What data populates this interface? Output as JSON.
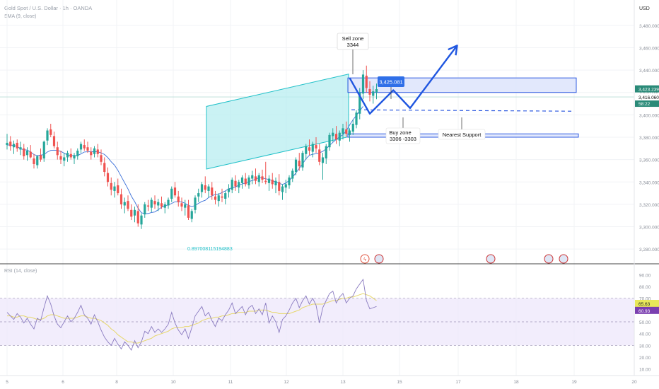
{
  "header": {
    "symbol": "Gold Spot / U.S. Dollar · 1h · OANDA",
    "indicator": "SMA (9, close)",
    "currency": "USD"
  },
  "rsi_header": "RSI (14, close)",
  "colors": {
    "up": "#26a69a",
    "down": "#ef5350",
    "channel": "#22c1c9",
    "zone_fill": "#dde4fb",
    "zone_stroke": "#2f5be0",
    "arrow": "#1f56e0",
    "sma": "#3a6fd8",
    "rsi": "#8a7bc0",
    "rsi_ma": "#e6d76a",
    "price_badge": "#2a8a78",
    "rsi_badge1": "#e8e85a",
    "rsi_badge2": "#7b3fb0"
  },
  "price_axis": {
    "ticks": [
      "3,480.000",
      "3,460.000",
      "3,440.000",
      "3,420.000",
      "3,400.000",
      "3,380.000",
      "3,360.000",
      "3,340.000",
      "3,320.000",
      "3,300.000",
      "3,280.000"
    ],
    "badges": [
      "3,423.239",
      "3,416.060",
      "58:22"
    ]
  },
  "rsi_axis": {
    "ticks": [
      "90.00",
      "80.00",
      "70.00",
      "60.00",
      "50.00",
      "40.00",
      "30.00",
      "20.00",
      "10.00"
    ],
    "badges": [
      "65.63",
      "60.93"
    ]
  },
  "time_axis": [
    "5",
    "6",
    "8",
    "10",
    "11",
    "12",
    "13",
    "15",
    "17",
    "18",
    "19",
    "20"
  ],
  "annotations": {
    "sell_zone": {
      "title": "Sell zone",
      "value": "3344"
    },
    "target_price": "3,425.081",
    "buy_zone": {
      "title": "Buy zone",
      "value": "3306 -3303"
    },
    "nearest_support": "Nearest Support",
    "channel_label": "0.897008115194883"
  },
  "chart_data": {
    "type": "candlestick",
    "price_range": [
      3270,
      3490
    ],
    "rsi_range": [
      5,
      95
    ],
    "candles": [
      [
        3373,
        3383,
        3369,
        3375
      ],
      [
        3376,
        3381,
        3368,
        3372
      ],
      [
        3371,
        3377,
        3365,
        3374
      ],
      [
        3375,
        3378,
        3367,
        3370
      ],
      [
        3369,
        3376,
        3364,
        3371
      ],
      [
        3370,
        3374,
        3360,
        3363
      ],
      [
        3364,
        3371,
        3359,
        3368
      ],
      [
        3367,
        3373,
        3361,
        3362
      ],
      [
        3361,
        3365,
        3352,
        3356
      ],
      [
        3355,
        3364,
        3352,
        3363
      ],
      [
        3364,
        3370,
        3358,
        3360
      ],
      [
        3361,
        3377,
        3358,
        3376
      ],
      [
        3377,
        3388,
        3373,
        3386
      ],
      [
        3387,
        3392,
        3380,
        3382
      ],
      [
        3381,
        3385,
        3370,
        3372
      ],
      [
        3371,
        3376,
        3360,
        3364
      ],
      [
        3363,
        3368,
        3356,
        3360
      ],
      [
        3359,
        3366,
        3354,
        3362
      ],
      [
        3362,
        3368,
        3358,
        3366
      ],
      [
        3365,
        3370,
        3360,
        3362
      ],
      [
        3361,
        3366,
        3356,
        3364
      ],
      [
        3363,
        3370,
        3360,
        3368
      ],
      [
        3369,
        3376,
        3366,
        3374
      ],
      [
        3373,
        3378,
        3368,
        3370
      ],
      [
        3371,
        3376,
        3366,
        3368
      ],
      [
        3367,
        3371,
        3360,
        3364
      ],
      [
        3365,
        3372,
        3362,
        3370
      ],
      [
        3369,
        3374,
        3362,
        3365
      ],
      [
        3364,
        3369,
        3355,
        3358
      ],
      [
        3357,
        3362,
        3345,
        3349
      ],
      [
        3348,
        3353,
        3336,
        3340
      ],
      [
        3339,
        3344,
        3328,
        3333
      ],
      [
        3332,
        3340,
        3326,
        3336
      ],
      [
        3337,
        3343,
        3328,
        3330
      ],
      [
        3329,
        3334,
        3316,
        3320
      ],
      [
        3319,
        3326,
        3312,
        3322
      ],
      [
        3323,
        3328,
        3314,
        3316
      ],
      [
        3315,
        3320,
        3306,
        3309
      ],
      [
        3310,
        3318,
        3304,
        3315
      ],
      [
        3314,
        3320,
        3300,
        3303
      ],
      [
        3302,
        3312,
        3298,
        3310
      ],
      [
        3311,
        3322,
        3308,
        3320
      ],
      [
        3319,
        3324,
        3314,
        3318
      ],
      [
        3317,
        3326,
        3313,
        3324
      ],
      [
        3323,
        3328,
        3316,
        3320
      ],
      [
        3319,
        3325,
        3314,
        3322
      ],
      [
        3321,
        3327,
        3316,
        3318
      ],
      [
        3317,
        3322,
        3312,
        3320
      ],
      [
        3319,
        3326,
        3316,
        3324
      ],
      [
        3325,
        3336,
        3322,
        3334
      ],
      [
        3335,
        3340,
        3326,
        3328
      ],
      [
        3327,
        3332,
        3318,
        3322
      ],
      [
        3321,
        3326,
        3314,
        3318
      ],
      [
        3317,
        3324,
        3310,
        3320
      ],
      [
        3319,
        3324,
        3306,
        3308
      ],
      [
        3307,
        3316,
        3304,
        3314
      ],
      [
        3315,
        3328,
        3312,
        3326
      ],
      [
        3327,
        3334,
        3322,
        3330
      ],
      [
        3331,
        3340,
        3326,
        3338
      ],
      [
        3337,
        3345,
        3330,
        3333
      ],
      [
        3332,
        3338,
        3326,
        3336
      ],
      [
        3335,
        3340,
        3324,
        3328
      ],
      [
        3327,
        3332,
        3320,
        3324
      ],
      [
        3323,
        3330,
        3318,
        3328
      ],
      [
        3327,
        3334,
        3322,
        3326
      ],
      [
        3325,
        3332,
        3320,
        3330
      ],
      [
        3331,
        3338,
        3326,
        3334
      ],
      [
        3333,
        3344,
        3330,
        3342
      ],
      [
        3341,
        3346,
        3332,
        3336
      ],
      [
        3335,
        3342,
        3330,
        3340
      ],
      [
        3339,
        3346,
        3334,
        3344
      ],
      [
        3343,
        3348,
        3336,
        3338
      ],
      [
        3337,
        3346,
        3334,
        3344
      ],
      [
        3343,
        3350,
        3338,
        3346
      ],
      [
        3345,
        3352,
        3338,
        3341
      ],
      [
        3340,
        3348,
        3336,
        3346
      ],
      [
        3345,
        3351,
        3339,
        3342
      ],
      [
        3341,
        3358,
        3338,
        3340
      ],
      [
        3339,
        3346,
        3332,
        3343
      ],
      [
        3342,
        3348,
        3334,
        3338
      ],
      [
        3337,
        3344,
        3330,
        3341
      ],
      [
        3340,
        3347,
        3328,
        3332
      ],
      [
        3331,
        3338,
        3324,
        3336
      ],
      [
        3335,
        3342,
        3330,
        3338
      ],
      [
        3337,
        3346,
        3334,
        3344
      ],
      [
        3343,
        3352,
        3340,
        3350
      ],
      [
        3349,
        3362,
        3346,
        3360
      ],
      [
        3359,
        3366,
        3350,
        3354
      ],
      [
        3353,
        3368,
        3350,
        3366
      ],
      [
        3365,
        3374,
        3360,
        3372
      ],
      [
        3371,
        3378,
        3364,
        3368
      ],
      [
        3367,
        3376,
        3362,
        3374
      ],
      [
        3373,
        3380,
        3366,
        3370
      ],
      [
        3369,
        3374,
        3355,
        3358
      ],
      [
        3357,
        3366,
        3342,
        3362
      ],
      [
        3361,
        3374,
        3356,
        3372
      ],
      [
        3371,
        3384,
        3368,
        3382
      ],
      [
        3381,
        3388,
        3376,
        3384
      ],
      [
        3383,
        3390,
        3374,
        3378
      ],
      [
        3377,
        3386,
        3372,
        3384
      ],
      [
        3383,
        3392,
        3378,
        3388
      ],
      [
        3387,
        3394,
        3380,
        3383
      ],
      [
        3382,
        3388,
        3376,
        3386
      ],
      [
        3385,
        3396,
        3382,
        3392
      ],
      [
        3391,
        3404,
        3388,
        3402
      ],
      [
        3401,
        3424,
        3396,
        3420
      ],
      [
        3419,
        3440,
        3414,
        3436
      ],
      [
        3435,
        3444,
        3420,
        3424
      ],
      [
        3423,
        3430,
        3412,
        3418
      ],
      [
        3417,
        3426,
        3410,
        3421
      ],
      [
        3420,
        3428,
        3414,
        3423
      ]
    ],
    "sma": [
      3373.0,
      3373.0,
      3372.6,
      3371.8,
      3369.6,
      3368.8,
      3368.5,
      3366.8,
      3364.5,
      3363.5,
      3364.1,
      3364.4,
      3366.8,
      3368.2,
      3368.4,
      3368.2,
      3367.3,
      3365.8,
      3364.0,
      3363.8,
      3363.3,
      3363.7,
      3365.1,
      3366.8,
      3367.0,
      3367.0,
      3367.1,
      3367.0,
      3366.0,
      3364.6,
      3361.8,
      3358.1,
      3355.0,
      3350.4,
      3344.8,
      3339.3,
      3333.8,
      3327.3,
      3322.4,
      3316.6,
      3312.5,
      3311.6,
      3311.8,
      3312.7,
      3313.2,
      3315.2,
      3317.4,
      3318.8,
      3319.4,
      3320.8,
      3322.3,
      3322.2,
      3322.2,
      3320.9,
      3319.1,
      3318.0,
      3319.0,
      3320.9,
      3322.6,
      3323.6,
      3326.1,
      3327.6,
      3328.8,
      3329.0,
      3330.6,
      3332.0,
      3334.0,
      3334.7,
      3335.4,
      3337.3,
      3338.2,
      3339.1,
      3340.3,
      3341.3,
      3342.4,
      3344.0,
      3343.6,
      3342.8,
      3342.2,
      3341.2,
      3339.8,
      3338.8,
      3337.8,
      3339.0,
      3341.4,
      3344.2,
      3348.1,
      3352.2,
      3356.2,
      3360.7,
      3363.8,
      3364.8,
      3365.2,
      3366.0,
      3367.4,
      3369.6,
      3372.6,
      3375.4,
      3378.0,
      3380.4,
      3382.2,
      3385.7,
      3391.0,
      3395.6,
      3399.5,
      3403.6,
      3407.6
    ],
    "rsi": [
      58,
      55,
      52,
      57,
      54,
      49,
      53,
      48,
      44,
      53,
      51,
      62,
      72,
      65,
      55,
      48,
      45,
      50,
      55,
      50,
      53,
      58,
      64,
      56,
      53,
      48,
      56,
      50,
      43,
      37,
      33,
      30,
      36,
      31,
      27,
      33,
      30,
      26,
      34,
      28,
      33,
      42,
      40,
      46,
      41,
      44,
      41,
      44,
      48,
      58,
      49,
      43,
      39,
      44,
      36,
      45,
      55,
      59,
      63,
      55,
      58,
      51,
      46,
      53,
      51,
      56,
      60,
      66,
      57,
      60,
      63,
      56,
      62,
      64,
      57,
      61,
      56,
      66,
      49,
      55,
      50,
      41,
      52,
      55,
      60,
      66,
      70,
      62,
      68,
      72,
      65,
      70,
      64,
      49,
      62,
      68,
      74,
      76,
      66,
      71,
      74,
      66,
      70,
      72,
      78,
      82,
      86,
      68,
      61,
      62,
      63
    ],
    "rsi_ma": [
      55,
      55,
      54,
      54,
      55,
      55,
      54,
      54,
      53,
      52,
      52,
      53,
      55,
      56,
      56,
      55,
      54,
      53,
      53,
      53,
      53,
      54,
      55,
      55,
      54,
      53,
      53,
      52,
      51,
      49,
      47,
      44,
      42,
      39,
      37,
      35,
      33,
      33,
      32,
      32,
      33,
      34,
      35,
      36,
      38,
      39,
      40,
      41,
      42,
      44,
      45,
      45,
      45,
      46,
      46,
      47,
      48,
      49,
      51,
      52,
      53,
      53,
      54,
      54,
      55,
      55,
      56,
      57,
      57,
      58,
      58,
      58,
      59,
      59,
      59,
      60,
      60,
      60,
      59,
      58,
      58,
      57,
      57,
      57,
      57,
      58,
      59,
      60,
      62,
      63,
      64,
      65,
      65,
      65,
      65,
      66,
      67,
      68,
      68,
      69,
      70,
      70,
      71,
      71,
      72,
      73,
      74,
      73,
      72,
      70,
      68
    ],
    "channel": {
      "lower": [
        [
          0,
          3311
        ],
        [
          104,
          3382
        ]
      ],
      "width": 56
    },
    "zones": {
      "sell": [
        3420,
        3433
      ],
      "support": [
        3380,
        3383
      ]
    },
    "support_level": 3404.5,
    "projection": [
      [
        102,
        3433
      ],
      [
        108,
        3401
      ],
      [
        115,
        3422
      ],
      [
        120,
        3406
      ],
      [
        134,
        3462
      ]
    ]
  }
}
